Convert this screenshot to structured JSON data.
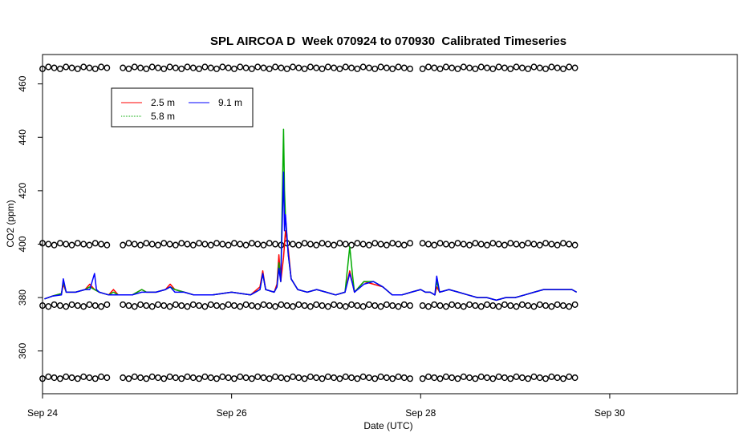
{
  "chart_data": {
    "type": "line",
    "title": "SPL AIRCOA D  Week 070924 to 070930  Calibrated Timeseries",
    "xlabel": "Date (UTC)",
    "ylabel": "CO2 (ppm)",
    "xlim": [
      0,
      7.35
    ],
    "ylim": [
      344,
      471
    ],
    "x_ticks": [
      {
        "value": 0,
        "label": "Sep 24"
      },
      {
        "value": 2,
        "label": "Sep 26"
      },
      {
        "value": 4,
        "label": "Sep 28"
      },
      {
        "value": 6,
        "label": "Sep 30"
      }
    ],
    "y_ticks": [
      {
        "value": 360,
        "label": "360"
      },
      {
        "value": 380,
        "label": "380"
      },
      {
        "value": 400,
        "label": "400"
      },
      {
        "value": 420,
        "label": "420"
      },
      {
        "value": 440,
        "label": "440"
      },
      {
        "value": 460,
        "label": "460"
      }
    ],
    "x_unit": "days since Sep 24 00:00 UTC",
    "legend": {
      "placement": "top-left",
      "entries": [
        "2.5 m",
        "5.8 m",
        "9.1 m"
      ]
    },
    "series": [
      {
        "name": "2.5 m",
        "color": "#ff0000",
        "points": [
          [
            0.02,
            379.5
          ],
          [
            0.1,
            380.5
          ],
          [
            0.2,
            381.5
          ],
          [
            0.22,
            385
          ],
          [
            0.25,
            382
          ],
          [
            0.35,
            382
          ],
          [
            0.45,
            383
          ],
          [
            0.5,
            385
          ],
          [
            0.55,
            383
          ],
          [
            0.6,
            382
          ],
          [
            0.7,
            381
          ],
          [
            0.75,
            383
          ],
          [
            0.8,
            381
          ],
          [
            0.95,
            381
          ],
          [
            1.05,
            383
          ],
          [
            1.1,
            382
          ],
          [
            1.2,
            382
          ],
          [
            1.3,
            383
          ],
          [
            1.35,
            385
          ],
          [
            1.4,
            383
          ],
          [
            1.5,
            382
          ],
          [
            1.6,
            381
          ],
          [
            1.8,
            381
          ],
          [
            2.0,
            382
          ],
          [
            2.2,
            381
          ],
          [
            2.3,
            384
          ],
          [
            2.33,
            390
          ],
          [
            2.36,
            383
          ],
          [
            2.45,
            382
          ],
          [
            2.48,
            385
          ],
          [
            2.5,
            396
          ],
          [
            2.52,
            386
          ],
          [
            2.55,
            395
          ],
          [
            2.57,
            405
          ],
          [
            2.6,
            398
          ],
          [
            2.63,
            387
          ],
          [
            2.7,
            383
          ],
          [
            2.8,
            382
          ],
          [
            2.9,
            383
          ],
          [
            3.0,
            382
          ],
          [
            3.1,
            381
          ],
          [
            3.2,
            382
          ],
          [
            3.25,
            390
          ],
          [
            3.28,
            385
          ],
          [
            3.3,
            382
          ],
          [
            3.4,
            386
          ],
          [
            3.5,
            385
          ],
          [
            3.6,
            384
          ],
          [
            3.7,
            381
          ],
          [
            3.8,
            381
          ],
          [
            3.9,
            382
          ],
          [
            4.0,
            383
          ],
          [
            4.05,
            382
          ],
          [
            4.1,
            382
          ],
          [
            4.15,
            381
          ],
          [
            4.17,
            384
          ],
          [
            4.2,
            382
          ],
          [
            4.3,
            383
          ],
          [
            4.4,
            382
          ],
          [
            4.5,
            381
          ],
          [
            4.6,
            380
          ],
          [
            4.7,
            380
          ],
          [
            4.8,
            379
          ],
          [
            4.9,
            380
          ],
          [
            5.0,
            380
          ],
          [
            5.1,
            381
          ],
          [
            5.2,
            382
          ],
          [
            5.3,
            383
          ],
          [
            5.4,
            383
          ],
          [
            5.5,
            383
          ],
          [
            5.6,
            383
          ],
          [
            5.65,
            382
          ]
        ]
      },
      {
        "name": "5.8 m",
        "color": "#00aa00",
        "points": [
          [
            0.02,
            379.5
          ],
          [
            0.1,
            380.5
          ],
          [
            0.2,
            381.5
          ],
          [
            0.22,
            386
          ],
          [
            0.25,
            382
          ],
          [
            0.35,
            382
          ],
          [
            0.45,
            383
          ],
          [
            0.5,
            384
          ],
          [
            0.55,
            383
          ],
          [
            0.6,
            382
          ],
          [
            0.7,
            381
          ],
          [
            0.75,
            382
          ],
          [
            0.8,
            381
          ],
          [
            0.95,
            381
          ],
          [
            1.05,
            383
          ],
          [
            1.1,
            382
          ],
          [
            1.2,
            382
          ],
          [
            1.3,
            383
          ],
          [
            1.35,
            384
          ],
          [
            1.4,
            383
          ],
          [
            1.5,
            382
          ],
          [
            1.6,
            381
          ],
          [
            1.8,
            381
          ],
          [
            2.0,
            382
          ],
          [
            2.2,
            381
          ],
          [
            2.3,
            383
          ],
          [
            2.33,
            389
          ],
          [
            2.36,
            383
          ],
          [
            2.45,
            382
          ],
          [
            2.48,
            384
          ],
          [
            2.5,
            393
          ],
          [
            2.52,
            386
          ],
          [
            2.55,
            443
          ],
          [
            2.56,
            420
          ],
          [
            2.57,
            410
          ],
          [
            2.6,
            396
          ],
          [
            2.63,
            387
          ],
          [
            2.7,
            383
          ],
          [
            2.8,
            382
          ],
          [
            2.9,
            383
          ],
          [
            3.0,
            382
          ],
          [
            3.1,
            381
          ],
          [
            3.2,
            382
          ],
          [
            3.25,
            399
          ],
          [
            3.28,
            388
          ],
          [
            3.3,
            382
          ],
          [
            3.4,
            386
          ],
          [
            3.5,
            386
          ],
          [
            3.6,
            384
          ],
          [
            3.7,
            381
          ],
          [
            3.8,
            381
          ],
          [
            3.9,
            382
          ],
          [
            4.0,
            383
          ],
          [
            4.05,
            382
          ],
          [
            4.1,
            382
          ],
          [
            4.15,
            381
          ],
          [
            4.17,
            386
          ],
          [
            4.2,
            382
          ],
          [
            4.3,
            383
          ],
          [
            4.4,
            382
          ],
          [
            4.5,
            381
          ],
          [
            4.6,
            380
          ],
          [
            4.7,
            380
          ],
          [
            4.8,
            379
          ],
          [
            4.9,
            380
          ],
          [
            5.0,
            380
          ],
          [
            5.1,
            381
          ],
          [
            5.2,
            382
          ],
          [
            5.3,
            383
          ],
          [
            5.4,
            383
          ],
          [
            5.5,
            383
          ],
          [
            5.6,
            383
          ],
          [
            5.65,
            382
          ]
        ]
      },
      {
        "name": "9.1 m",
        "color": "#0000ff",
        "points": [
          [
            0.02,
            379.5
          ],
          [
            0.1,
            380.5
          ],
          [
            0.2,
            381
          ],
          [
            0.22,
            387
          ],
          [
            0.25,
            382
          ],
          [
            0.35,
            382
          ],
          [
            0.45,
            383
          ],
          [
            0.5,
            383
          ],
          [
            0.55,
            389
          ],
          [
            0.57,
            383
          ],
          [
            0.6,
            382
          ],
          [
            0.7,
            381
          ],
          [
            0.8,
            381
          ],
          [
            0.95,
            381
          ],
          [
            1.05,
            382
          ],
          [
            1.1,
            382
          ],
          [
            1.2,
            382
          ],
          [
            1.3,
            383
          ],
          [
            1.35,
            384
          ],
          [
            1.4,
            382
          ],
          [
            1.5,
            382
          ],
          [
            1.6,
            381
          ],
          [
            1.8,
            381
          ],
          [
            2.0,
            382
          ],
          [
            2.2,
            381
          ],
          [
            2.3,
            383
          ],
          [
            2.33,
            389
          ],
          [
            2.36,
            383
          ],
          [
            2.45,
            382
          ],
          [
            2.48,
            384
          ],
          [
            2.5,
            391
          ],
          [
            2.52,
            386
          ],
          [
            2.55,
            427
          ],
          [
            2.56,
            405
          ],
          [
            2.57,
            411
          ],
          [
            2.6,
            396
          ],
          [
            2.63,
            387
          ],
          [
            2.7,
            383
          ],
          [
            2.8,
            382
          ],
          [
            2.9,
            383
          ],
          [
            3.0,
            382
          ],
          [
            3.1,
            381
          ],
          [
            3.2,
            382
          ],
          [
            3.25,
            389
          ],
          [
            3.28,
            385
          ],
          [
            3.3,
            382
          ],
          [
            3.4,
            385
          ],
          [
            3.5,
            386
          ],
          [
            3.6,
            384
          ],
          [
            3.7,
            381
          ],
          [
            3.8,
            381
          ],
          [
            3.9,
            382
          ],
          [
            4.0,
            383
          ],
          [
            4.05,
            382
          ],
          [
            4.1,
            382
          ],
          [
            4.15,
            381
          ],
          [
            4.17,
            388
          ],
          [
            4.2,
            382
          ],
          [
            4.3,
            383
          ],
          [
            4.4,
            382
          ],
          [
            4.5,
            381
          ],
          [
            4.6,
            380
          ],
          [
            4.7,
            380
          ],
          [
            4.8,
            379
          ],
          [
            4.9,
            380
          ],
          [
            5.0,
            380
          ],
          [
            5.1,
            381
          ],
          [
            5.2,
            382
          ],
          [
            5.3,
            383
          ],
          [
            5.4,
            383
          ],
          [
            5.5,
            383
          ],
          [
            5.6,
            383
          ],
          [
            5.65,
            382
          ]
        ]
      }
    ],
    "markers": {
      "levels": [
        350,
        377,
        400,
        466
      ],
      "ranges": [
        [
          0.0,
          0.7
        ],
        [
          0.85,
          3.92
        ],
        [
          4.02,
          5.65
        ]
      ],
      "spacing": 0.062
    }
  }
}
